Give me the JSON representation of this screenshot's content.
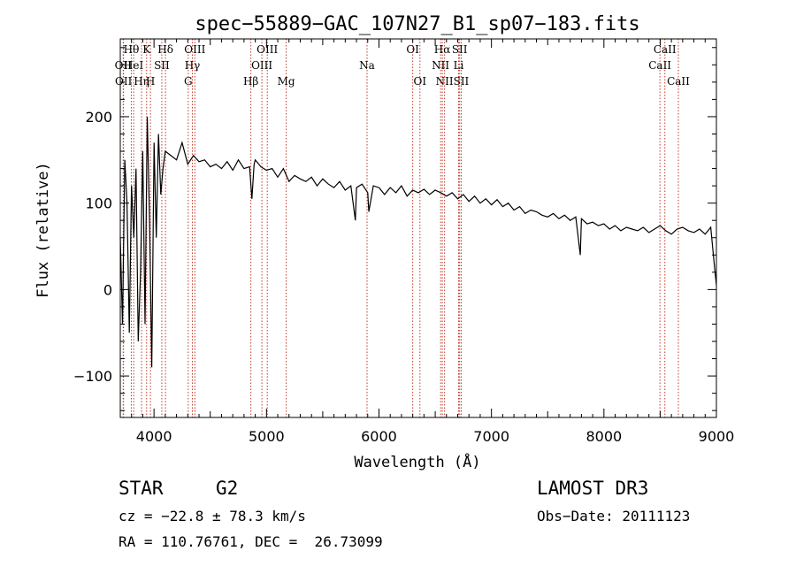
{
  "chart_data": {
    "type": "line",
    "title": "spec−55889−GAC_107N27_B1_sp07−183.fits",
    "xlabel": "Wavelength (Å)",
    "ylabel": "Flux (relative)",
    "xlim": [
      3700,
      9000
    ],
    "ylim": [
      -148,
      290
    ],
    "xticks": [
      4000,
      5000,
      6000,
      7000,
      8000,
      9000
    ],
    "yticks": [
      -100,
      0,
      100,
      200
    ],
    "series": [
      {
        "name": "flux",
        "x": [
          3700,
          3720,
          3740,
          3760,
          3780,
          3800,
          3820,
          3840,
          3860,
          3880,
          3900,
          3920,
          3940,
          3960,
          3980,
          4000,
          4020,
          4040,
          4060,
          4080,
          4100,
          4150,
          4200,
          4250,
          4300,
          4350,
          4400,
          4450,
          4500,
          4550,
          4600,
          4650,
          4700,
          4750,
          4800,
          4850,
          4870,
          4890,
          4900,
          4950,
          5000,
          5050,
          5100,
          5150,
          5200,
          5250,
          5300,
          5350,
          5400,
          5450,
          5500,
          5550,
          5600,
          5650,
          5700,
          5750,
          5790,
          5800,
          5850,
          5900,
          5910,
          5950,
          6000,
          6050,
          6100,
          6150,
          6200,
          6250,
          6300,
          6350,
          6400,
          6450,
          6500,
          6550,
          6600,
          6650,
          6700,
          6750,
          6800,
          6850,
          6900,
          6950,
          7000,
          7050,
          7100,
          7150,
          7200,
          7250,
          7300,
          7350,
          7400,
          7450,
          7500,
          7550,
          7600,
          7650,
          7700,
          7750,
          7790,
          7800,
          7850,
          7900,
          7950,
          8000,
          8050,
          8100,
          8150,
          8200,
          8250,
          8300,
          8350,
          8400,
          8450,
          8500,
          8550,
          8600,
          8650,
          8700,
          8750,
          8800,
          8850,
          8900,
          8950,
          8980,
          9000
        ],
        "y": [
          60,
          -40,
          150,
          100,
          -50,
          120,
          60,
          140,
          -60,
          20,
          160,
          -40,
          200,
          80,
          -90,
          170,
          60,
          180,
          110,
          140,
          160,
          155,
          150,
          170,
          145,
          155,
          148,
          150,
          142,
          145,
          140,
          148,
          138,
          150,
          140,
          142,
          105,
          145,
          150,
          142,
          138,
          140,
          130,
          140,
          125,
          132,
          128,
          125,
          130,
          120,
          128,
          122,
          118,
          125,
          115,
          120,
          80,
          118,
          122,
          112,
          90,
          120,
          118,
          110,
          118,
          112,
          120,
          108,
          115,
          112,
          116,
          110,
          115,
          112,
          108,
          112,
          105,
          110,
          102,
          108,
          100,
          105,
          98,
          104,
          96,
          100,
          92,
          96,
          88,
          92,
          90,
          86,
          84,
          88,
          82,
          86,
          80,
          84,
          40,
          82,
          76,
          78,
          74,
          76,
          70,
          74,
          68,
          72,
          70,
          68,
          72,
          66,
          70,
          74,
          68,
          64,
          70,
          72,
          68,
          66,
          70,
          64,
          72,
          30,
          5
        ]
      }
    ],
    "lines": [
      {
        "wl": 3726,
        "label": "OII",
        "row": 1
      },
      {
        "wl": 3729,
        "label": "OII",
        "row": 2
      },
      {
        "wl": 3798,
        "label": "Hθ",
        "row": 0
      },
      {
        "wl": 3819,
        "label": "HeI",
        "row": 1
      },
      {
        "wl": 3889,
        "label": "Hη",
        "row": 2
      },
      {
        "wl": 3934,
        "label": "K",
        "row": 0
      },
      {
        "wl": 3968,
        "label": "H",
        "row": 2
      },
      {
        "wl": 4069,
        "label": "SII",
        "row": 1
      },
      {
        "wl": 4102,
        "label": "Hδ",
        "row": 0
      },
      {
        "wl": 4304,
        "label": "G",
        "row": 2
      },
      {
        "wl": 4341,
        "label": "Hγ",
        "row": 1
      },
      {
        "wl": 4363,
        "label": "OIII",
        "row": 0
      },
      {
        "wl": 4861,
        "label": "Hβ",
        "row": 2
      },
      {
        "wl": 4959,
        "label": "OIII",
        "row": 1
      },
      {
        "wl": 5007,
        "label": "OIII",
        "row": 0
      },
      {
        "wl": 5175,
        "label": "Mg",
        "row": 2
      },
      {
        "wl": 5894,
        "label": "Na",
        "row": 1
      },
      {
        "wl": 6300,
        "label": "OI",
        "row": 0
      },
      {
        "wl": 6364,
        "label": "OI",
        "row": 2
      },
      {
        "wl": 6548,
        "label": "NII",
        "row": 1
      },
      {
        "wl": 6563,
        "label": "Hα",
        "row": 0
      },
      {
        "wl": 6583,
        "label": "NII",
        "row": 2
      },
      {
        "wl": 6708,
        "label": "Li",
        "row": 1
      },
      {
        "wl": 6717,
        "label": "SII",
        "row": 0
      },
      {
        "wl": 6731,
        "label": "SII",
        "row": 2
      },
      {
        "wl": 8498,
        "label": "CaII",
        "row": 1
      },
      {
        "wl": 8542,
        "label": "CaII",
        "row": 0
      },
      {
        "wl": 8662,
        "label": "CaII",
        "row": 2
      }
    ]
  },
  "info": {
    "class": "STAR",
    "subclass": "G2",
    "survey": "LAMOST DR3",
    "cz": "cz = −22.8 ± 78.3 km/s",
    "obs_date": "Obs−Date: 20111123",
    "coords": "RA = 110.76761, DEC =  26.73099"
  },
  "colors": {
    "line_marker": "#c0392b",
    "spectrum": "#000000",
    "axes": "#000000"
  }
}
